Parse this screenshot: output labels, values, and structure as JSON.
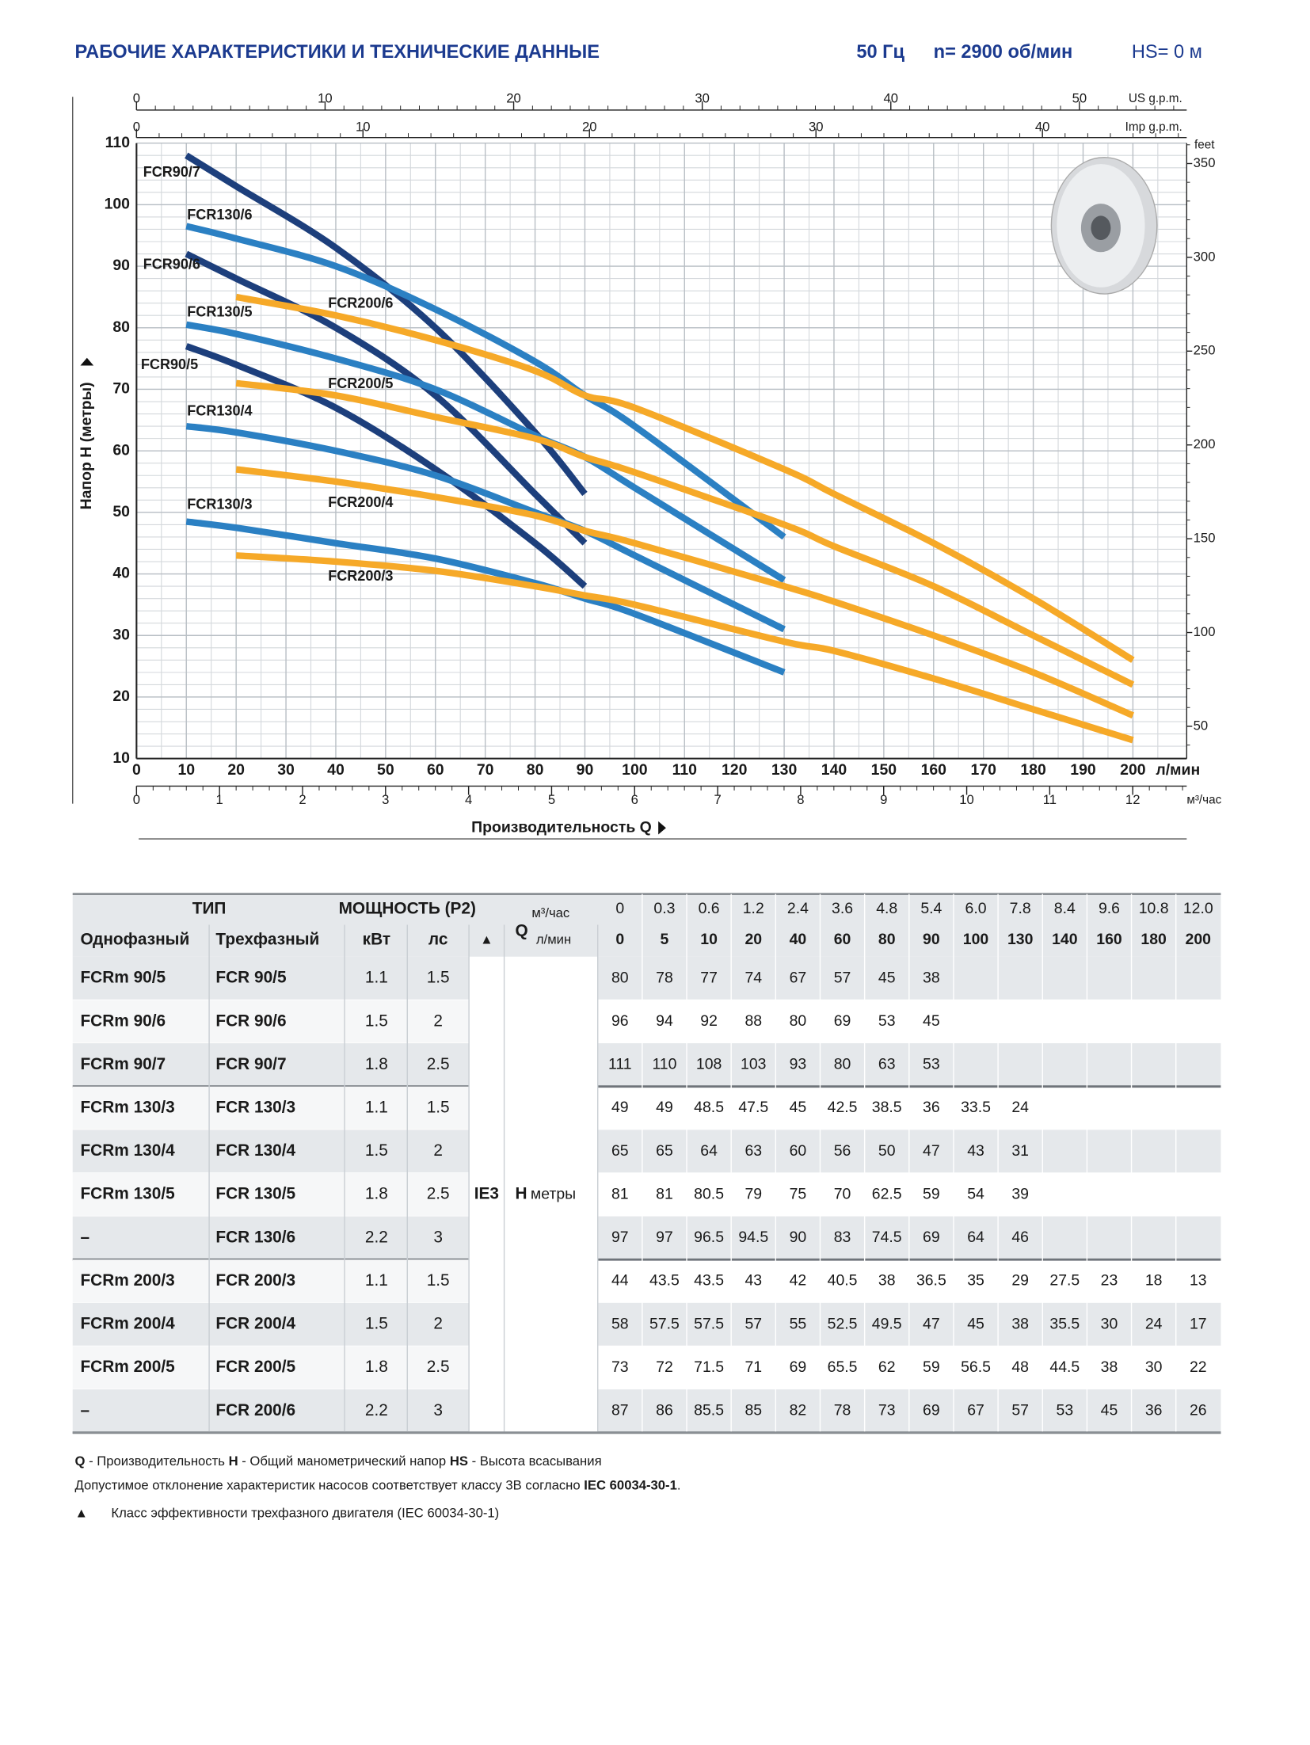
{
  "header": {
    "title": "РАБОЧИЕ ХАРАКТЕРИСТИКИ И ТЕХНИЧЕСКИЕ ДАННЫЕ",
    "freq": "50 Гц",
    "speed": "n= 2900 об/мин",
    "hs": "HS= 0 м"
  },
  "chart_data": {
    "type": "line",
    "xlabel": "Производительность Q",
    "ylabel": "Напор H  (метры)",
    "x_unit": "л/мин",
    "xlim": [
      0,
      210.8
    ],
    "xticks": [
      0,
      10,
      20,
      30,
      40,
      50,
      60,
      70,
      80,
      90,
      100,
      110,
      120,
      130,
      140,
      150,
      160,
      170,
      180,
      190,
      200
    ],
    "ylim": [
      10,
      110
    ],
    "yticks": [
      10,
      20,
      30,
      40,
      50,
      60,
      70,
      80,
      90,
      100,
      110
    ],
    "y2label": "feet",
    "y2lim": [
      32.81,
      360.89
    ],
    "y2ticks": [
      50,
      100,
      150,
      200,
      250,
      300,
      350
    ],
    "top_axes": [
      {
        "label": "US g.p.m.",
        "xlim": [
          0,
          55.69
        ],
        "xticks": [
          0,
          10,
          20,
          30,
          40,
          50
        ]
      },
      {
        "label": "Imp g.p.m.",
        "xlim": [
          0,
          46.37
        ],
        "xticks": [
          0,
          10,
          20,
          30,
          40
        ]
      }
    ],
    "bottom_axis2": {
      "label": "м³/час",
      "xlim": [
        0,
        12.65
      ],
      "xticks": [
        0,
        1,
        2,
        3,
        4,
        5,
        6,
        7,
        8,
        9,
        10,
        11,
        12
      ]
    },
    "grid": true,
    "series": [
      {
        "name": "FCR90/5",
        "color": "#1d3f7c",
        "x": [
          10,
          20,
          40,
          60,
          80,
          90
        ],
        "values": [
          77,
          74,
          67,
          57,
          45,
          38
        ]
      },
      {
        "name": "FCR90/6",
        "color": "#1d3f7c",
        "x": [
          10,
          20,
          40,
          60,
          80,
          90
        ],
        "values": [
          92,
          88,
          80,
          69,
          53,
          45
        ]
      },
      {
        "name": "FCR90/7",
        "color": "#1d3f7c",
        "x": [
          10,
          20,
          40,
          60,
          80,
          90
        ],
        "values": [
          108,
          103,
          93,
          80,
          63,
          53
        ]
      },
      {
        "name": "FCR130/3",
        "color": "#2b80c3",
        "x": [
          10,
          20,
          40,
          60,
          80,
          90,
          100,
          130
        ],
        "values": [
          48.5,
          47.5,
          45,
          42.5,
          38.5,
          36,
          33.5,
          24
        ]
      },
      {
        "name": "FCR130/4",
        "color": "#2b80c3",
        "x": [
          10,
          20,
          40,
          60,
          80,
          90,
          100,
          130
        ],
        "values": [
          64,
          63,
          60,
          56,
          50,
          47,
          43,
          31
        ]
      },
      {
        "name": "FCR130/5",
        "color": "#2b80c3",
        "x": [
          10,
          20,
          40,
          60,
          80,
          90,
          100,
          130
        ],
        "values": [
          80.5,
          79,
          75,
          70,
          62.5,
          59,
          54,
          39
        ]
      },
      {
        "name": "FCR130/6",
        "color": "#2b80c3",
        "x": [
          10,
          20,
          40,
          60,
          80,
          90,
          100,
          130
        ],
        "values": [
          96.5,
          94.5,
          90,
          83,
          74.5,
          69,
          64,
          46
        ]
      },
      {
        "name": "FCR200/3",
        "color": "#f6a928",
        "x": [
          20,
          40,
          60,
          80,
          90,
          100,
          130,
          140,
          160,
          180,
          200
        ],
        "values": [
          43,
          42,
          40.5,
          38,
          36.5,
          35,
          29,
          27.5,
          23,
          18,
          13
        ]
      },
      {
        "name": "FCR200/4",
        "color": "#f6a928",
        "x": [
          20,
          40,
          60,
          80,
          90,
          100,
          130,
          140,
          160,
          180,
          200
        ],
        "values": [
          57,
          55,
          52.5,
          49.5,
          47,
          45,
          38,
          35.5,
          30,
          24,
          17
        ]
      },
      {
        "name": "FCR200/5",
        "color": "#f6a928",
        "x": [
          20,
          40,
          60,
          80,
          90,
          100,
          130,
          140,
          160,
          180,
          200
        ],
        "values": [
          71,
          69,
          65.5,
          62,
          59,
          56.5,
          48,
          44.5,
          38,
          30,
          22
        ]
      },
      {
        "name": "FCR200/6",
        "color": "#f6a928",
        "x": [
          20,
          40,
          60,
          80,
          90,
          100,
          130,
          140,
          160,
          180,
          200
        ],
        "values": [
          85,
          82,
          78,
          73,
          69,
          67,
          57,
          53,
          45,
          36,
          26
        ]
      }
    ]
  },
  "table": {
    "type_label": "ТИП",
    "power_label": "МОЩНОСТЬ (P2)",
    "single_label": "Однофазный",
    "three_label": "Трехфазный",
    "kw_label": "кВт",
    "hp_label": "лс",
    "class_label": "▲",
    "q_label": "Q",
    "m3_label": "м³/час",
    "lmin_label": "л/мин",
    "ie3": "IE3",
    "h_label": "H",
    "h_unit": "метры",
    "flow_m3h": [
      "0",
      "0.3",
      "0.6",
      "1.2",
      "2.4",
      "3.6",
      "4.8",
      "5.4",
      "6.0",
      "7.8",
      "8.4",
      "9.6",
      "10.8",
      "12.0"
    ],
    "flow_lmin": [
      0,
      5,
      10,
      20,
      40,
      60,
      80,
      90,
      100,
      130,
      140,
      160,
      180,
      200
    ],
    "rows": [
      {
        "single": "FCRm 90/5",
        "three": "FCR 90/5",
        "kw": "1.1",
        "hp": "1.5",
        "h": [
          80,
          78,
          77,
          74,
          67,
          57,
          45,
          38
        ]
      },
      {
        "single": "FCRm 90/6",
        "three": "FCR 90/6",
        "kw": "1.5",
        "hp": "2",
        "h": [
          96,
          94,
          92,
          88,
          80,
          69,
          53,
          45
        ]
      },
      {
        "single": "FCRm 90/7",
        "three": "FCR 90/7",
        "kw": "1.8",
        "hp": "2.5",
        "h": [
          111,
          110,
          108,
          103,
          93,
          80,
          63,
          53
        ]
      },
      {
        "single": "FCRm 130/3",
        "three": "FCR 130/3",
        "kw": "1.1",
        "hp": "1.5",
        "h": [
          49,
          49,
          48.5,
          47.5,
          45,
          42.5,
          38.5,
          36,
          33.5,
          24
        ]
      },
      {
        "single": "FCRm 130/4",
        "three": "FCR 130/4",
        "kw": "1.5",
        "hp": "2",
        "h": [
          65,
          65,
          64,
          63,
          60,
          56,
          50,
          47,
          43,
          31
        ]
      },
      {
        "single": "FCRm 130/5",
        "three": "FCR 130/5",
        "kw": "1.8",
        "hp": "2.5",
        "h": [
          81,
          81,
          80.5,
          79,
          75,
          70,
          62.5,
          59,
          54,
          39
        ]
      },
      {
        "single": "–",
        "three": "FCR 130/6",
        "kw": "2.2",
        "hp": "3",
        "h": [
          97,
          97,
          96.5,
          94.5,
          90,
          83,
          74.5,
          69,
          64,
          46
        ]
      },
      {
        "single": "FCRm 200/3",
        "three": "FCR 200/3",
        "kw": "1.1",
        "hp": "1.5",
        "h": [
          44,
          43.5,
          43.5,
          43,
          42,
          40.5,
          38,
          36.5,
          35,
          29,
          27.5,
          23,
          18,
          13
        ]
      },
      {
        "single": "FCRm 200/4",
        "three": "FCR 200/4",
        "kw": "1.5",
        "hp": "2",
        "h": [
          58,
          57.5,
          57.5,
          57,
          55,
          52.5,
          49.5,
          47,
          45,
          38,
          35.5,
          30,
          24,
          17
        ]
      },
      {
        "single": "FCRm 200/5",
        "three": "FCR 200/5",
        "kw": "1.8",
        "hp": "2.5",
        "h": [
          73,
          72,
          71.5,
          71,
          69,
          65.5,
          62,
          59,
          56.5,
          48,
          44.5,
          38,
          30,
          22
        ]
      },
      {
        "single": "–",
        "three": "FCR 200/6",
        "kw": "2.2",
        "hp": "3",
        "h": [
          87,
          86,
          85.5,
          85,
          82,
          78,
          73,
          69,
          67,
          57,
          53,
          45,
          36,
          26
        ]
      }
    ]
  },
  "notes": {
    "q": "Q",
    "q_text": " - Производительность  ",
    "h": "H",
    "h_text": " - Общий манометрический напор  ",
    "hs": "HS",
    "hs_text": " - Высота всасывания",
    "tolerance": "Допустимое отклонение характеристик насосов соответствует классу 3В согласно ",
    "tolerance_std": "IEC 60034-30-1",
    "tolerance_end": ".",
    "class_mark": "▲",
    "class_text": "Класс эффективности трехфазного двигателя (IEC 60034-30-1)"
  }
}
